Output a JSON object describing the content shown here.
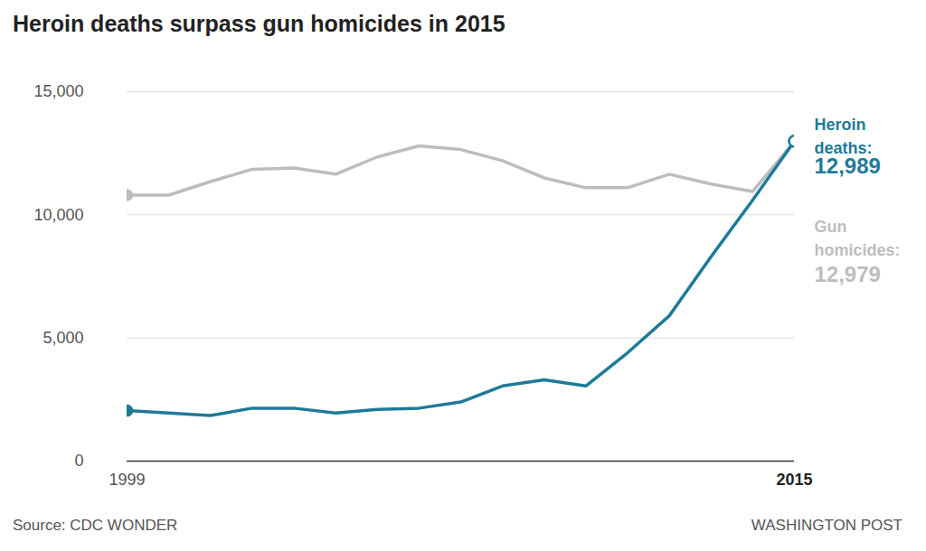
{
  "chart_data": {
    "type": "line",
    "title": "Heroin deaths surpass gun homicides in 2015",
    "source": "Source: CDC WONDER",
    "credit": "WASHINGTON POST",
    "x": [
      1999,
      2000,
      2001,
      2002,
      2003,
      2004,
      2005,
      2006,
      2007,
      2008,
      2009,
      2010,
      2011,
      2012,
      2013,
      2014,
      2015
    ],
    "xlim": [
      1999,
      2015
    ],
    "xticks": [
      1999,
      2015
    ],
    "ylim": [
      0,
      15000
    ],
    "yticks": [
      0,
      {
        "value": 5000,
        "label": "5,000"
      },
      {
        "value": 10000,
        "label": "10,000"
      },
      {
        "value": 15000,
        "label": "15,000"
      }
    ],
    "grid": true,
    "marker": "circle",
    "series": [
      {
        "name": "Heroin deaths:",
        "color": "#1f7a99",
        "values": [
          2050,
          1950,
          1850,
          2150,
          2150,
          1950,
          2100,
          2150,
          2400,
          3050,
          3300,
          3050,
          4400,
          5900,
          8300,
          10600,
          12989
        ],
        "value_labels": [
          null,
          null,
          null,
          null,
          null,
          null,
          null,
          null,
          null,
          null,
          null,
          null,
          null,
          null,
          null,
          null,
          "12,989"
        ]
      },
      {
        "name": "Gun homicides:",
        "color": "#bdbdbd",
        "values": [
          10800,
          10800,
          11350,
          11850,
          11900,
          11650,
          12350,
          12800,
          12650,
          12200,
          11500,
          11100,
          11100,
          11650,
          11250,
          10950,
          12979
        ],
        "value_labels": [
          null,
          null,
          null,
          null,
          null,
          null,
          null,
          null,
          null,
          null,
          null,
          null,
          null,
          null,
          null,
          null,
          "12,979"
        ]
      }
    ]
  }
}
